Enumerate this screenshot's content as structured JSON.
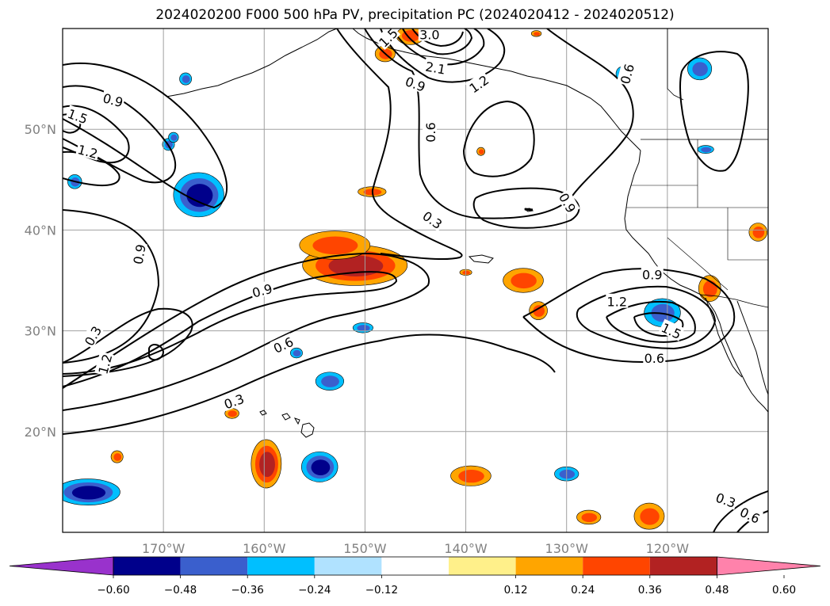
{
  "title": "2024020200 F000 500 hPa PV, precipitation PC (2024020412 - 2024020512)",
  "map": {
    "lat_range": [
      10,
      60
    ],
    "lon_range": [
      -180,
      -110
    ],
    "lat_ticks": [
      {
        "value": 20,
        "label": "20°N"
      },
      {
        "value": 30,
        "label": "30°N"
      },
      {
        "value": 40,
        "label": "40°N"
      },
      {
        "value": 50,
        "label": "50°N"
      }
    ],
    "lon_ticks": [
      {
        "value": -170,
        "label": "170°W"
      },
      {
        "value": -160,
        "label": "160°W"
      },
      {
        "value": -150,
        "label": "150°W"
      },
      {
        "value": -140,
        "label": "140°W"
      },
      {
        "value": -130,
        "label": "130°W"
      },
      {
        "value": -120,
        "label": "120°W"
      }
    ],
    "gridlines": true
  },
  "pv_contour_labels": [
    {
      "text": "0.9",
      "lon": -175.0,
      "lat": 52.9,
      "rot": 15
    },
    {
      "text": "1.5",
      "lon": -178.5,
      "lat": 51.3,
      "rot": 20
    },
    {
      "text": "1.2",
      "lon": -177.5,
      "lat": 47.8,
      "rot": 15
    },
    {
      "text": "0.9",
      "lon": -172.4,
      "lat": 37.6,
      "rot": -80
    },
    {
      "text": "0.3",
      "lon": -177.0,
      "lat": 29.5,
      "rot": -60
    },
    {
      "text": "1.2",
      "lon": -175.8,
      "lat": 26.7,
      "rot": -75
    },
    {
      "text": "0.9",
      "lon": -160.2,
      "lat": 34.0,
      "rot": -15
    },
    {
      "text": "0.6",
      "lon": -158.1,
      "lat": 28.6,
      "rot": -25
    },
    {
      "text": "0.3",
      "lon": -163.0,
      "lat": 23.0,
      "rot": -20
    },
    {
      "text": "3.0",
      "lon": -143.6,
      "lat": 59.4,
      "rot": 0
    },
    {
      "text": "2.1",
      "lon": -143.0,
      "lat": 56.1,
      "rot": 10
    },
    {
      "text": "1.5",
      "lon": -147.7,
      "lat": 59.1,
      "rot": -45
    },
    {
      "text": "1.2",
      "lon": -138.7,
      "lat": 54.5,
      "rot": -35
    },
    {
      "text": "0.9",
      "lon": -145.0,
      "lat": 54.5,
      "rot": 20
    },
    {
      "text": "0.6",
      "lon": -143.5,
      "lat": 49.7,
      "rot": -90
    },
    {
      "text": "0.3",
      "lon": -143.3,
      "lat": 41.0,
      "rot": 35
    },
    {
      "text": "0.9",
      "lon": -129.9,
      "lat": 42.7,
      "rot": 60
    },
    {
      "text": "0.6",
      "lon": -124.0,
      "lat": 55.5,
      "rot": -75
    },
    {
      "text": "1.2",
      "lon": -125.0,
      "lat": 32.9,
      "rot": 0
    },
    {
      "text": "0.9",
      "lon": -121.5,
      "lat": 35.6,
      "rot": 0
    },
    {
      "text": "1.5",
      "lon": -119.6,
      "lat": 30.0,
      "rot": 25
    },
    {
      "text": "0.6",
      "lon": -121.3,
      "lat": 27.3,
      "rot": 0
    },
    {
      "text": "0.3",
      "lon": -114.2,
      "lat": 13.2,
      "rot": 20
    },
    {
      "text": "0.6",
      "lon": -111.8,
      "lat": 11.7,
      "rot": 25
    }
  ],
  "colorbar": {
    "colors": [
      "#9932cc",
      "#00008b",
      "#3a5fcd",
      "#00bfff",
      "#b0e2ff",
      "#ffffff",
      "#fff08a",
      "#ffa500",
      "#ff4500",
      "#b22222",
      "#ff82ab"
    ],
    "ticks": [
      "−0.60",
      "−0.48",
      "−0.36",
      "−0.24",
      "−0.12",
      "0.12",
      "0.24",
      "0.36",
      "0.48",
      "0.60"
    ]
  },
  "precip_blobs": [
    {
      "lon": -151.0,
      "lat": 36.5,
      "rx": 5.2,
      "ry": 2.0,
      "colors": [
        "#ffa500",
        "#ff4500",
        "#b22222"
      ]
    },
    {
      "lon": -153.0,
      "lat": 38.5,
      "rx": 3.5,
      "ry": 1.4,
      "colors": [
        "#ffa500",
        "#ff4500"
      ]
    },
    {
      "lon": -159.8,
      "lat": 16.8,
      "rx": 1.5,
      "ry": 2.4,
      "colors": [
        "#ffa500",
        "#ff4500",
        "#b22222"
      ]
    },
    {
      "lon": -154.5,
      "lat": 16.5,
      "rx": 1.8,
      "ry": 1.5,
      "colors": [
        "#00bfff",
        "#3a5fcd",
        "#00008b"
      ]
    },
    {
      "lon": -177.5,
      "lat": 14.0,
      "rx": 3.2,
      "ry": 1.3,
      "colors": [
        "#00bfff",
        "#3a5fcd",
        "#00008b"
      ]
    },
    {
      "lon": -166.5,
      "lat": 43.5,
      "rx": 2.5,
      "ry": 2.2,
      "colors": [
        "#00bfff",
        "#3a5fcd",
        "#00008b"
      ]
    },
    {
      "lon": -120.5,
      "lat": 31.8,
      "rx": 1.8,
      "ry": 1.4,
      "colors": [
        "#00bfff",
        "#3a5fcd"
      ]
    },
    {
      "lon": -145.5,
      "lat": 59.3,
      "rx": 1.4,
      "ry": 0.9,
      "colors": [
        "#ffa500",
        "#ff4500"
      ]
    },
    {
      "lon": -134.3,
      "lat": 35.0,
      "rx": 2.0,
      "ry": 1.2,
      "colors": [
        "#ffa500",
        "#ff4500"
      ]
    },
    {
      "lon": -132.8,
      "lat": 32.0,
      "rx": 0.9,
      "ry": 0.9,
      "colors": [
        "#ffa500",
        "#ff4500"
      ]
    },
    {
      "lon": -139.5,
      "lat": 15.6,
      "rx": 2.0,
      "ry": 1.0,
      "colors": [
        "#ffa500",
        "#ff4500"
      ]
    },
    {
      "lon": -121.8,
      "lat": 11.6,
      "rx": 1.5,
      "ry": 1.3,
      "colors": [
        "#ffa500",
        "#ff4500"
      ]
    },
    {
      "lon": -127.8,
      "lat": 11.5,
      "rx": 1.2,
      "ry": 0.7,
      "colors": [
        "#ffa500",
        "#ff4500"
      ]
    },
    {
      "lon": -115.8,
      "lat": 34.2,
      "rx": 1.1,
      "ry": 1.3,
      "colors": [
        "#ffa500",
        "#ff4500"
      ]
    },
    {
      "lon": -111.0,
      "lat": 39.8,
      "rx": 0.9,
      "ry": 0.9,
      "colors": [
        "#ffa500",
        "#ff4500"
      ]
    },
    {
      "lon": -153.5,
      "lat": 25.0,
      "rx": 1.4,
      "ry": 0.9,
      "colors": [
        "#00bfff",
        "#3a5fcd"
      ]
    },
    {
      "lon": -130.0,
      "lat": 15.8,
      "rx": 1.2,
      "ry": 0.7,
      "colors": [
        "#00bfff",
        "#3a5fcd"
      ]
    },
    {
      "lon": -116.8,
      "lat": 56.0,
      "rx": 1.2,
      "ry": 1.1,
      "colors": [
        "#00bfff",
        "#3a5fcd"
      ]
    },
    {
      "lon": -116.2,
      "lat": 48.0,
      "rx": 0.8,
      "ry": 0.4,
      "colors": [
        "#00bfff",
        "#3a5fcd"
      ]
    },
    {
      "lon": -169.5,
      "lat": 48.5,
      "rx": 0.6,
      "ry": 0.6,
      "colors": [
        "#00bfff",
        "#3a5fcd"
      ]
    },
    {
      "lon": -178.8,
      "lat": 44.8,
      "rx": 0.7,
      "ry": 0.7,
      "colors": [
        "#00bfff",
        "#3a5fcd"
      ]
    },
    {
      "lon": -148.0,
      "lat": 57.5,
      "rx": 1.0,
      "ry": 0.8,
      "colors": [
        "#ffa500",
        "#ff4500"
      ]
    },
    {
      "lon": -149.3,
      "lat": 43.8,
      "rx": 1.4,
      "ry": 0.5,
      "colors": [
        "#ffa500",
        "#ff4500"
      ]
    },
    {
      "lon": -163.2,
      "lat": 21.8,
      "rx": 0.7,
      "ry": 0.5,
      "colors": [
        "#ffa500",
        "#ff4500"
      ]
    },
    {
      "lon": -174.6,
      "lat": 17.5,
      "rx": 0.6,
      "ry": 0.6,
      "colors": [
        "#ffa500",
        "#ff4500"
      ]
    },
    {
      "lon": -150.2,
      "lat": 30.3,
      "rx": 1.0,
      "ry": 0.5,
      "colors": [
        "#00bfff",
        "#3a5fcd"
      ]
    },
    {
      "lon": -156.8,
      "lat": 27.8,
      "rx": 0.6,
      "ry": 0.5,
      "colors": [
        "#00bfff",
        "#3a5fcd"
      ]
    },
    {
      "lon": -167.8,
      "lat": 55.0,
      "rx": 0.6,
      "ry": 0.6,
      "colors": [
        "#00bfff",
        "#3a5fcd"
      ]
    },
    {
      "lon": -138.5,
      "lat": 47.8,
      "rx": 0.4,
      "ry": 0.4,
      "colors": [
        "#ffa500",
        "#ff4500"
      ]
    },
    {
      "lon": -140.0,
      "lat": 35.8,
      "rx": 0.6,
      "ry": 0.3,
      "colors": [
        "#ffa500",
        "#ff4500"
      ]
    },
    {
      "lon": -169.0,
      "lat": 49.2,
      "rx": 0.5,
      "ry": 0.5,
      "colors": [
        "#00bfff",
        "#3a5fcd"
      ]
    },
    {
      "lon": -124.5,
      "lat": 55.5,
      "rx": 0.6,
      "ry": 0.7,
      "colors": [
        "#00bfff",
        "#3a5fcd"
      ]
    },
    {
      "lon": -133.0,
      "lat": 59.5,
      "rx": 0.5,
      "ry": 0.3,
      "colors": [
        "#ffa500",
        "#ff4500"
      ]
    }
  ]
}
